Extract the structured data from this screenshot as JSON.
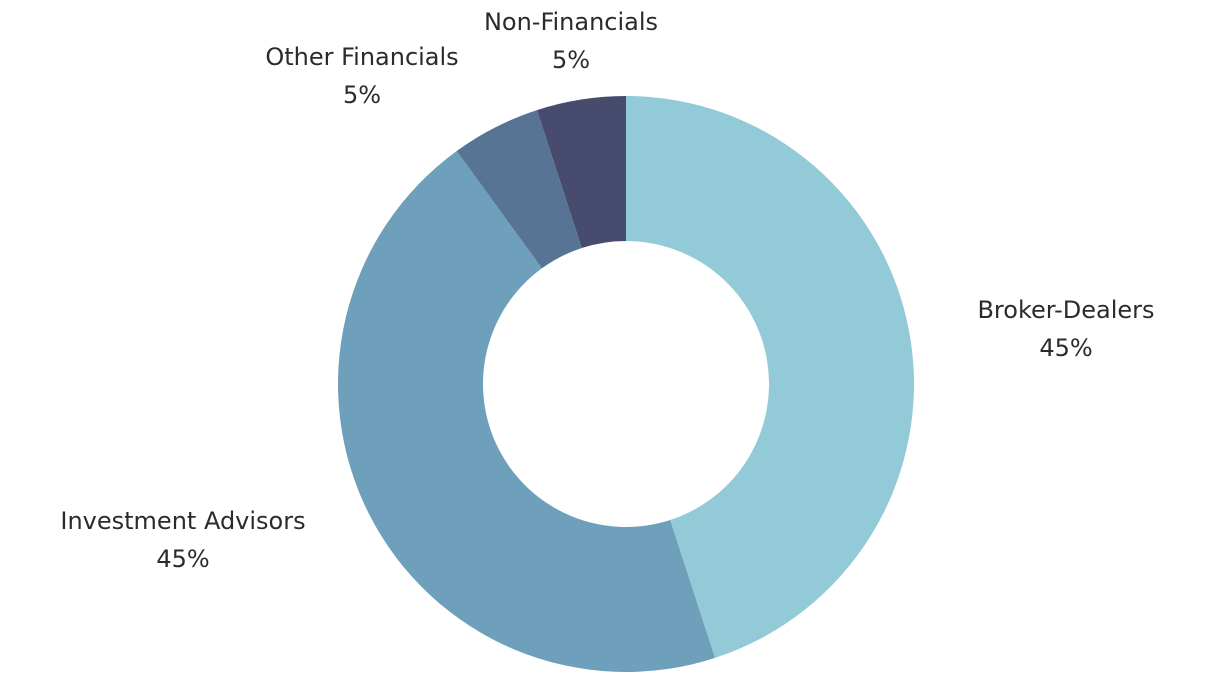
{
  "chart_data": {
    "type": "pie",
    "variant": "donut",
    "title": "",
    "labels": [
      "Broker-Dealers",
      "Investment Advisors",
      "Other Financials",
      "Non-Financials"
    ],
    "values": [
      45,
      45,
      5,
      5
    ],
    "value_labels": [
      "45%",
      "45%",
      "5%",
      "5%"
    ],
    "colors": [
      "#92CAD8",
      "#6E9FBB",
      "#577495",
      "#474C6E"
    ],
    "start_angle": "12 o'clock",
    "direction": "clockwise",
    "legend": "none"
  }
}
